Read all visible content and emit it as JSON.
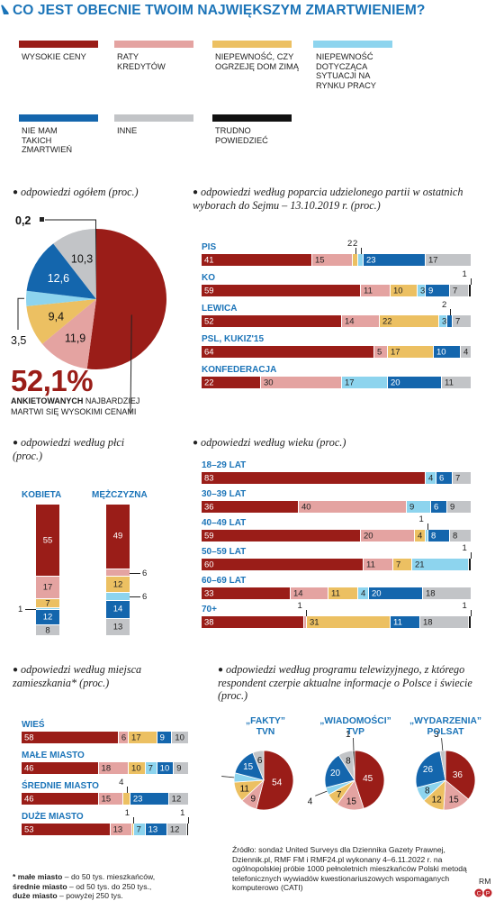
{
  "title": "CO JEST OBECNIE TWOIM NAJWIĘKSZYM ZMARTWIENIEM?",
  "colors": {
    "wysokie_ceny": "#9a1d18",
    "raty_kredytow": "#e4a3a1",
    "niepewnosc_dom": "#ecc062",
    "niepewnosc_praca": "#8dd4ee",
    "nie_mam": "#1466ad",
    "inne": "#c2c4c7",
    "trudno": "#111111"
  },
  "legend": [
    {
      "key": "wysokie_ceny",
      "label": "WYSOKIE CENY"
    },
    {
      "key": "raty_kredytow",
      "label": "RATY KREDYTÓW"
    },
    {
      "key": "niepewnosc_dom",
      "label": "NIEPEWNOŚĆ, CZY OGRZEJĘ DOM ZIMĄ"
    },
    {
      "key": "niepewnosc_praca",
      "label": "NIEPEWNOŚĆ DOTYCZĄCA SYTUACJI NA RYNKU PRACY"
    },
    {
      "key": "nie_mam",
      "label": "NIE MAM TAKICH ZMARTWIEŃ"
    },
    {
      "key": "inne",
      "label": "INNE"
    },
    {
      "key": "trudno",
      "label": "TRUDNO POWIEDZIEĆ"
    }
  ],
  "sections": {
    "ogolem": "odpowiedzi ogółem (proc.)",
    "partia": "odpowiedzi według poparcia udzielonego partii w ostatnich wyborach do Sejmu – 13.10.2019 r. (proc.)",
    "plec": "odpowiedzi według płci (proc.)",
    "wiek": "odpowiedzi według wieku (proc.)",
    "miejsce": "odpowiedzi według miejsca zamieszkania* (proc.)",
    "tv": "odpowiedzi według programu telewizyjnego, z którego respondent czerpie aktualne informacje o Polsce i świecie (proc.)"
  },
  "highlight": {
    "value": "52,1%",
    "bold": "ANKIETOWANYCH",
    "rest": " NAJBARDZIEJ MARTWI SIĘ WYSOKIMI CENAMI"
  },
  "footnote": {
    "lines": [
      {
        "bold": "* małe miasto",
        "rest": " – do 50 tys. mieszkańców,"
      },
      {
        "bold": "średnie miasto",
        "rest": " – od 50 tys. do 250 tys.,"
      },
      {
        "bold": "duże miasto",
        "rest": " – powyżej 250 tys."
      }
    ]
  },
  "source": "Źródło: sondaż United Surveys dla Dziennika Gazety Prawnej, Dziennik.pl, RMF FM i RMF24.pl wykonany 4–6.11.2022 r. na ogólnopolskiej próbie 1000 pełnoletnich mieszkańców Polski metodą telefonicznych wywiadów kwestionariuszowych wspomaganych komputerowo (CATI)",
  "credit": "RM",
  "chart_data": [
    {
      "id": "ogolem",
      "type": "pie",
      "series": [
        {
          "name": "WYSOKIE CENY",
          "value": 52.1
        },
        {
          "name": "RATY KREDYTÓW",
          "value": 11.9
        },
        {
          "name": "NIEPEWNOŚĆ, CZY OGRZEJĘ DOM ZIMĄ",
          "value": 9.4
        },
        {
          "name": "NIEPEWNOŚĆ DOTYCZĄCA SYTUACJI NA RYNKU PRACY",
          "value": 3.5
        },
        {
          "name": "NIE MAM TAKICH ZMARTWIEŃ",
          "value": 12.6
        },
        {
          "name": "INNE",
          "value": 10.3
        },
        {
          "name": "TRUDNO POWIEDZIEĆ",
          "value": 0.2
        }
      ],
      "labels": [
        "11,9",
        "9,4",
        "3,5",
        "12,6",
        "10,3",
        "0,2"
      ]
    },
    {
      "id": "partia",
      "type": "bar",
      "stacked": true,
      "categories": [
        "PiS",
        "KO",
        "LEWICA",
        "PSL, KUKIZ'15",
        "KONFEDERACJA"
      ],
      "rows": [
        [
          41,
          15,
          2,
          2,
          23,
          17,
          0
        ],
        [
          59,
          11,
          10,
          3,
          9,
          7,
          1
        ],
        [
          52,
          14,
          22,
          3,
          2,
          7,
          0
        ],
        [
          64,
          5,
          17,
          0,
          10,
          4,
          0
        ],
        [
          22,
          30,
          0,
          17,
          20,
          11,
          0
        ]
      ]
    },
    {
      "id": "plec",
      "type": "bar",
      "stacked": true,
      "orientation": "vertical",
      "categories": [
        "KOBIETA",
        "MĘŻCZYZNA"
      ],
      "rows": [
        [
          55,
          17,
          7,
          1,
          12,
          8,
          0
        ],
        [
          49,
          6,
          12,
          6,
          14,
          13,
          0
        ]
      ]
    },
    {
      "id": "wiek",
      "type": "bar",
      "stacked": true,
      "categories": [
        "18–29 LAT",
        "30–39 LAT",
        "40–49 LAT",
        "50–59 LAT",
        "60–69 LAT",
        "70+"
      ],
      "rows": [
        [
          83,
          0,
          0,
          4,
          6,
          7,
          0
        ],
        [
          36,
          40,
          0,
          9,
          6,
          9,
          0
        ],
        [
          59,
          20,
          4,
          1,
          8,
          8,
          0
        ],
        [
          60,
          11,
          7,
          21,
          0,
          0,
          1
        ],
        [
          33,
          14,
          11,
          4,
          20,
          18,
          0
        ],
        [
          38,
          1,
          31,
          0,
          11,
          18,
          1
        ]
      ]
    },
    {
      "id": "miejsce",
      "type": "bar",
      "stacked": true,
      "categories": [
        "WIEŚ",
        "MAŁE MIASTO",
        "ŚREDNIE MIASTO",
        "DUŻE MIASTO"
      ],
      "rows": [
        [
          58,
          6,
          17,
          0,
          9,
          10,
          0
        ],
        [
          46,
          18,
          10,
          7,
          10,
          9,
          0
        ],
        [
          46,
          15,
          4,
          0,
          23,
          12,
          0
        ],
        [
          53,
          13,
          1,
          7,
          13,
          12,
          1
        ]
      ]
    },
    {
      "id": "tv",
      "type": "pie",
      "pies": [
        {
          "title": "„FAKTY” TVN",
          "values": [
            54,
            9,
            11,
            5,
            15,
            6
          ]
        },
        {
          "title": "„WIADOMOŚCI” TVP",
          "values": [
            45,
            15,
            7,
            4,
            20,
            8,
            1
          ]
        },
        {
          "title": "„WYDARZENIA” POLSAT",
          "values": [
            36,
            15,
            12,
            8,
            26,
            3
          ]
        }
      ]
    }
  ]
}
